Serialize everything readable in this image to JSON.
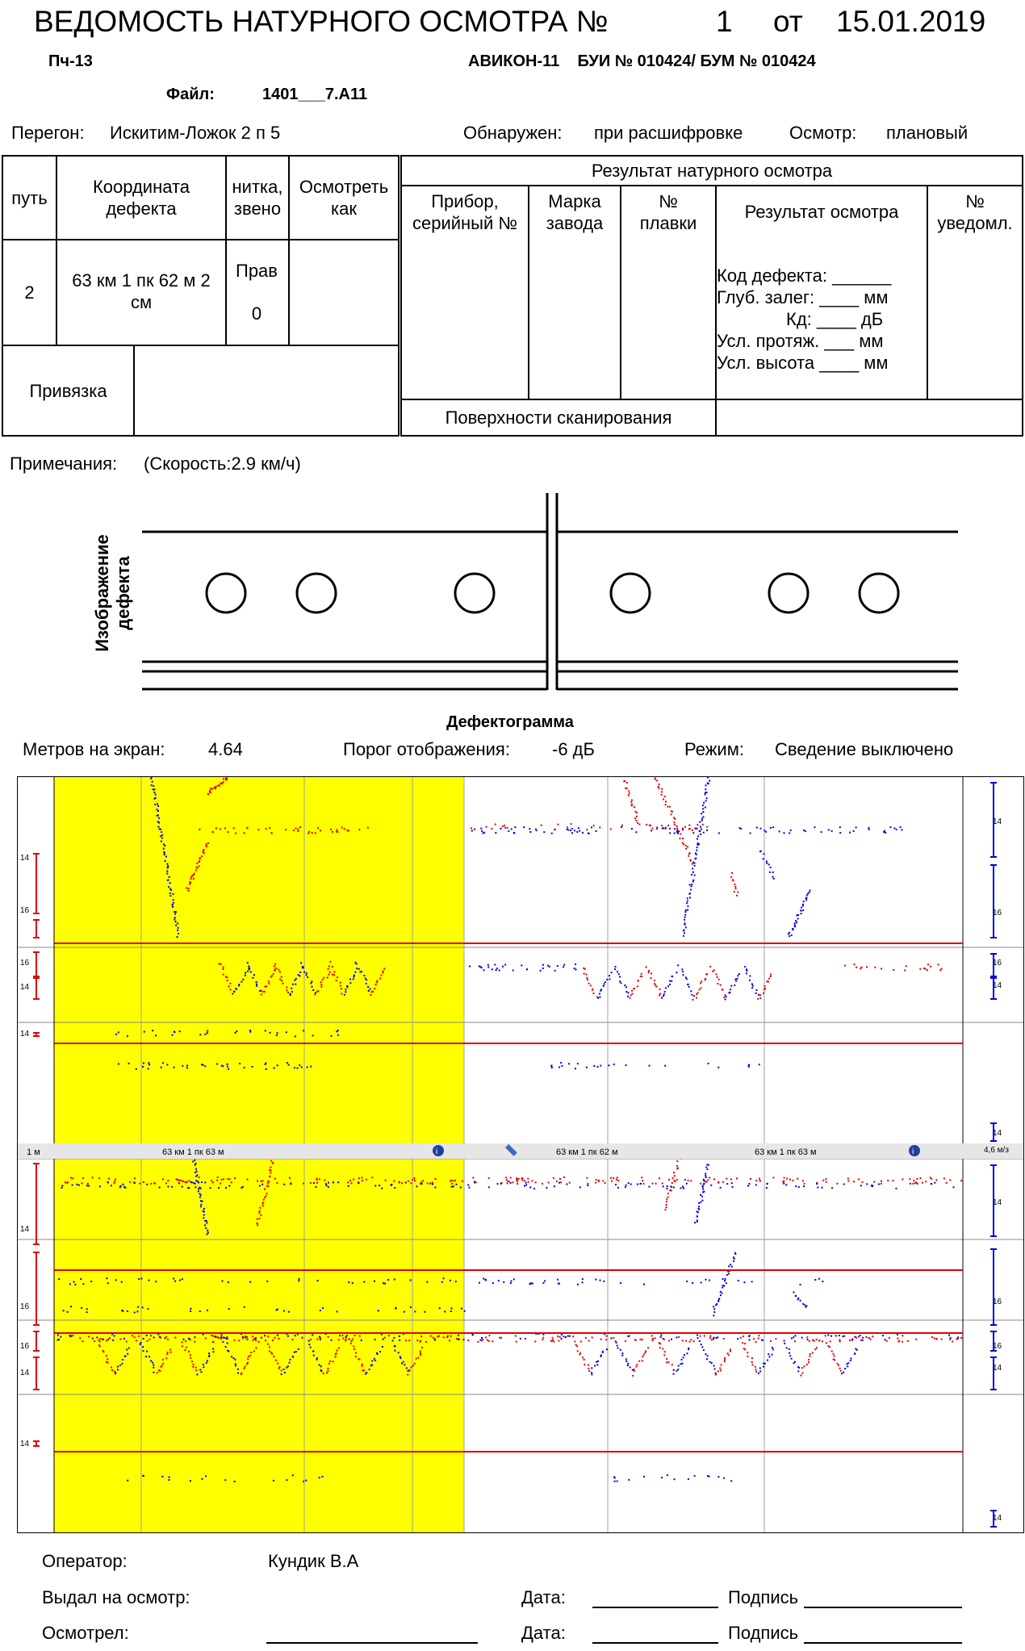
{
  "header": {
    "title_prefix": "ВЕДОМОСТЬ НАТУРНОГО ОСМОТРА №",
    "number": "1",
    "from_label": "от",
    "date": "15.01.2019",
    "pch": "Пч-13",
    "device": "АВИКОН-11    БУИ № 010424/ БУМ № 010424",
    "file_label": "Файл:",
    "file_name": "1401___7.A11",
    "peregon_label": "Перегон:",
    "peregon_value": "Искитим-Ложок 2 п 5",
    "detected_label": "Обнаружен:",
    "detected_value": "при расшифровке",
    "inspection_label": "Осмотр:",
    "inspection_value": "плановый"
  },
  "table": {
    "col_track": "путь",
    "col_coord": "Координата дефекта",
    "col_thread": "нитка, звено",
    "col_inspect_as": "Осмотреть как",
    "result_header": "Результат натурного осмотра",
    "col_device": "Прибор, серийный №",
    "col_brand": "Марка завода",
    "col_melt": "№ плавки",
    "col_result": "Результат осмотра",
    "col_notice": "№ уведомл.",
    "val_track": "2",
    "val_coord": "63 км 1 пк 62 м 2 см",
    "val_thread": "Прав",
    "val_link": "0",
    "binding_label": "Привязка",
    "surfaces_label": "Поверхности сканирования",
    "result_lines": {
      "code": "Код дефекта: ______",
      "depth": "Глуб. залег: ____ мм",
      "kd": "Кд: ____ дБ",
      "len": "Усл. протяж. ___ мм",
      "height": "Усл. высота ____ мм"
    }
  },
  "notes": {
    "label": "Примечания:",
    "value": "(Скорость:2.9 км/ч)"
  },
  "defect_image_label": "Изображение дефекта",
  "defectogram": {
    "title": "Дефектограмма",
    "meters_label": "Метров на экран:",
    "meters_value": "4.64",
    "threshold_label": "Порог отображения:",
    "threshold_value": "-6 дБ",
    "mode_label": "Режим:",
    "mode_value": "Сведение выключено",
    "ruler": {
      "scale": "1 м",
      "label1": "63 км 1 пк 63 м",
      "label2": "63 км 1 пк 62 м",
      "label3": "63 км 1 пк 63 м",
      "speed": "4,6 м/з"
    },
    "axis_labels": [
      "14",
      "16"
    ],
    "colors": {
      "highlight": "#ffff00",
      "channel_a": "#e00000",
      "channel_b": "#0000e0",
      "grid": "#a0a0a0"
    }
  },
  "footer": {
    "operator_label": "Оператор:",
    "operator_value": "Кундик В.А",
    "issued_label": "Выдал на осмотр:",
    "inspected_label": "Осмотрел:",
    "date_label": "Дата:",
    "sign_label": "Подпись"
  }
}
